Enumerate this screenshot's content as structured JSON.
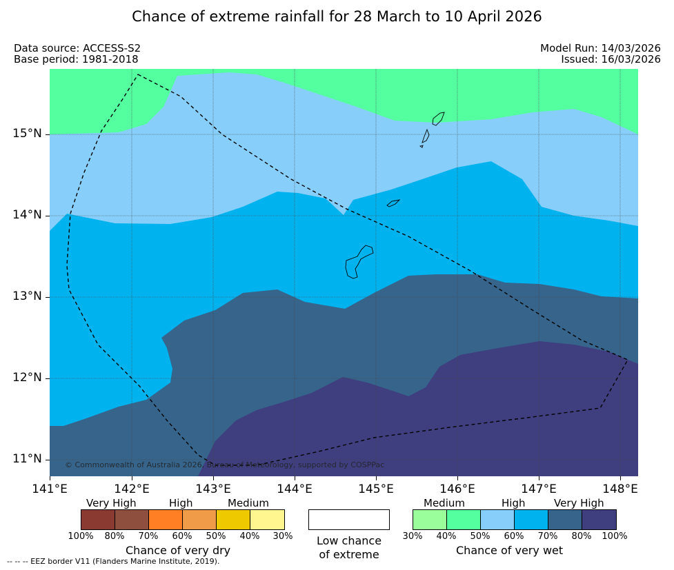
{
  "title": "Chance of extreme rainfall for 28 March to 10 April 2026",
  "data_source": "Data source: ACCESS-S2",
  "base_period": "Base period: 1981-2018",
  "model_run": "Model Run: 14/03/2026",
  "issued": "Issued: 16/03/2026",
  "copyright": "© Commonwealth of Australia 2026, Bureau of Meteorology, supported by COSPPac",
  "footnote": "--  --  -- EEZ border V11 (Flanders Marine Institute, 2019).",
  "lon_labels": [
    "141°E",
    "142°E",
    "143°E",
    "144°E",
    "145°E",
    "146°E",
    "147°E",
    "148°E"
  ],
  "lat_labels": [
    "15°N",
    "14°N",
    "13°N",
    "12°N",
    "11°N"
  ],
  "legend": {
    "dry": {
      "title": "Chance of very dry",
      "categories": [
        "Very High",
        "High",
        "Medium"
      ],
      "colors": [
        "#8b3a32",
        "#8f4f3e",
        "#ff7f24",
        "#ef9b47",
        "#eec900",
        "#fff68f"
      ],
      "ticks": [
        "100%",
        "80%",
        "70%",
        "60%",
        "50%",
        "40%",
        "30%"
      ]
    },
    "neutral": {
      "line1": "Low chance",
      "line2": "of extreme"
    },
    "wet": {
      "title": "Chance of very wet",
      "categories": [
        "Medium",
        "High",
        "Very High"
      ],
      "colors": [
        "#9aff9a",
        "#54ff9f",
        "#87cefa",
        "#00b2ee",
        "#36648b",
        "#3f3f7f"
      ],
      "ticks": [
        "30%",
        "40%",
        "50%",
        "60%",
        "70%",
        "80%",
        "100%"
      ]
    }
  },
  "map_colors": {
    "c50_60": "#87cefa",
    "c40_50": "#54ff9f",
    "c60_70": "#00b2ee",
    "c70_80": "#36648b",
    "c80_100": "#3f3f7f"
  }
}
